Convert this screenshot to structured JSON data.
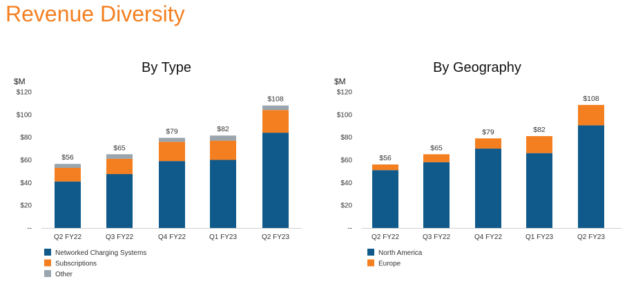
{
  "page": {
    "title": "Revenue Diversity"
  },
  "chart_data": [
    {
      "type": "bar",
      "stacked": true,
      "title": "By Type",
      "ylabel": "$M",
      "ylim": [
        0,
        120
      ],
      "yticks": [
        0,
        20,
        40,
        60,
        80,
        100,
        120
      ],
      "ytick_labels": [
        "--",
        "$20",
        "$40",
        "$60",
        "$80",
        "$100",
        "$120"
      ],
      "categories": [
        "Q2 FY22",
        "Q3 FY22",
        "Q4 FY22",
        "Q1 FY23",
        "Q2 FY23"
      ],
      "totals": [
        "$56",
        "$65",
        "$79",
        "$82",
        "$108"
      ],
      "series": [
        {
          "name": "Networked Charging Systems",
          "color": "#0f5a8a",
          "values": [
            41,
            47.5,
            59,
            60,
            84
          ]
        },
        {
          "name": "Subscriptions",
          "color": "#f47f20",
          "values": [
            12,
            13.5,
            17,
            17,
            20
          ]
        },
        {
          "name": "Other",
          "color": "#9aa5ad",
          "values": [
            3.5,
            4,
            3.5,
            4.5,
            4
          ]
        }
      ]
    },
    {
      "type": "bar",
      "stacked": true,
      "title": "By Geography",
      "ylabel": "$M",
      "ylim": [
        0,
        120
      ],
      "yticks": [
        0,
        20,
        40,
        60,
        80,
        100,
        120
      ],
      "ytick_labels": [
        "--",
        "$20",
        "$40",
        "$60",
        "$80",
        "$100",
        "$120"
      ],
      "categories": [
        "Q2 FY22",
        "Q3 FY22",
        "Q4 FY22",
        "Q1 FY23",
        "Q2 FY23"
      ],
      "totals": [
        "$56",
        "$65",
        "$79",
        "$82",
        "$108"
      ],
      "series": [
        {
          "name": "North America",
          "color": "#0f5a8a",
          "values": [
            51,
            58,
            70,
            66,
            90.5
          ]
        },
        {
          "name": "Europe",
          "color": "#f47f20",
          "values": [
            5,
            7,
            9,
            15,
            18
          ]
        }
      ]
    }
  ]
}
